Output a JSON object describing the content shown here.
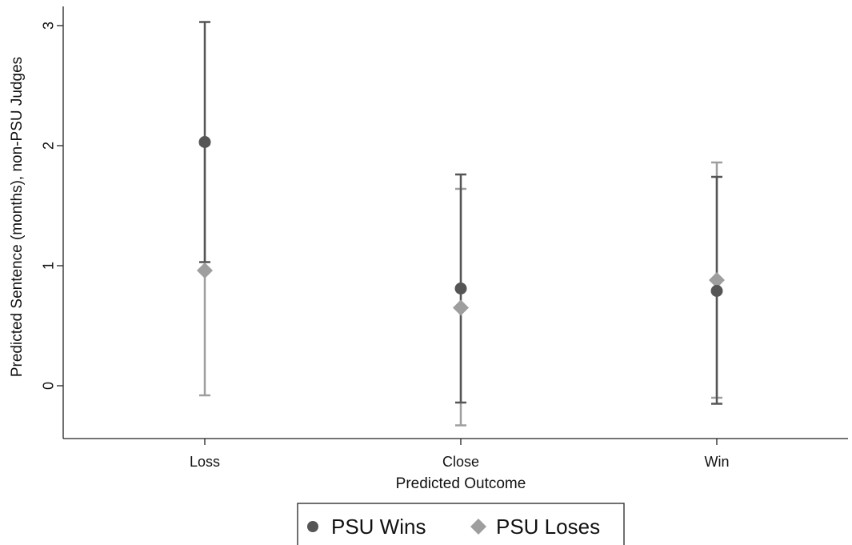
{
  "chart_data": {
    "type": "scatter",
    "title": "",
    "xlabel": "Predicted Outcome",
    "ylabel": "Predicted Sentence (months), non-PSU Judges",
    "categories": [
      "Loss",
      "Close",
      "Win"
    ],
    "y_ticks": [
      "0",
      "1",
      "2",
      "3"
    ],
    "ylim": [
      -0.45,
      3.15
    ],
    "grid": false,
    "legend_position": "bottom",
    "series": [
      {
        "name": "PSU Wins",
        "marker": "circle",
        "color": "#555555",
        "values": [
          2.03,
          0.81,
          0.79
        ],
        "ci_low": [
          1.03,
          -0.14,
          -0.15
        ],
        "ci_high": [
          3.03,
          1.76,
          1.74
        ]
      },
      {
        "name": "PSU Loses",
        "marker": "diamond",
        "color": "#9e9e9e",
        "values": [
          0.96,
          0.65,
          0.88
        ],
        "ci_low": [
          -0.08,
          -0.33,
          -0.1
        ],
        "ci_high": [
          2.01,
          1.64,
          1.86
        ]
      }
    ]
  }
}
